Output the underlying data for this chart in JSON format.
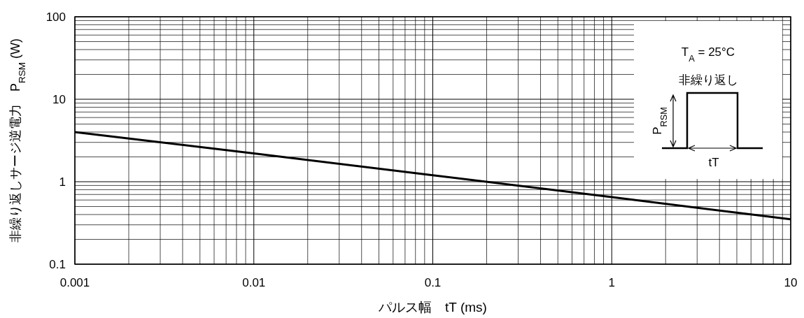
{
  "chart_data": {
    "type": "line",
    "xlabel": "パルス幅　tT (ms)",
    "ylabel": "非繰り返しサージ逆電力　P$_{RSM}$ (W)",
    "log": "xy",
    "x": [
      0.001,
      0.01,
      0.1,
      1,
      10
    ],
    "series": [
      {
        "color": "#000000",
        "values": [
          4,
          2.2,
          1.2,
          0.65,
          0.35
        ]
      }
    ],
    "xlim": [
      0.001,
      10
    ],
    "ylim": [
      0.1,
      100
    ],
    "xticks": [
      0.001,
      0.01,
      0.1,
      1,
      10
    ],
    "yticks": [
      0.1,
      1,
      10,
      100
    ],
    "grid": true,
    "annotations": [
      "T$_{A}$ = 25°C",
      "非繰り返し",
      "P$_{RSM}$",
      "tT"
    ]
  }
}
